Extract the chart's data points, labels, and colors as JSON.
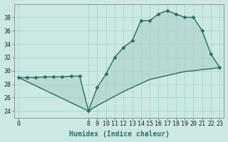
{
  "xlabel": "Humidex (Indice chaleur)",
  "background_color": "#cce8e4",
  "line_color": "#2d6e65",
  "marker": "D",
  "marker_size": 2.5,
  "x_top": [
    0,
    1,
    2,
    3,
    4,
    5,
    6,
    7,
    8,
    9,
    10,
    11,
    12,
    13,
    14,
    15,
    16,
    17,
    18,
    19,
    20,
    21,
    22,
    23
  ],
  "y_top": [
    29.0,
    29.0,
    29.0,
    29.1,
    29.1,
    29.1,
    29.2,
    29.2,
    24.0,
    27.5,
    29.5,
    32.0,
    33.5,
    34.5,
    37.5,
    37.5,
    38.5,
    39.0,
    38.5,
    38.0,
    38.0,
    36.0,
    32.5,
    30.5
  ],
  "x_bottom": [
    8,
    9,
    10,
    11,
    12,
    13,
    14,
    15,
    16,
    17,
    18,
    19,
    20,
    21,
    22,
    23
  ],
  "y_bottom": [
    24.0,
    24.8,
    25.5,
    26.2,
    26.9,
    27.5,
    28.1,
    28.7,
    29.0,
    29.3,
    29.6,
    29.9,
    30.0,
    30.2,
    30.3,
    30.5
  ],
  "ylim": [
    23,
    40
  ],
  "xlim": [
    -0.5,
    23.5
  ],
  "yticks": [
    24,
    26,
    28,
    30,
    32,
    34,
    36,
    38
  ],
  "xticks": [
    0,
    8,
    9,
    10,
    11,
    12,
    13,
    14,
    15,
    16,
    17,
    18,
    19,
    20,
    21,
    22,
    23
  ],
  "grid_color": "#aad4ce",
  "xlabel_fontsize": 7,
  "tick_fontsize": 6,
  "line_width": 1.0
}
